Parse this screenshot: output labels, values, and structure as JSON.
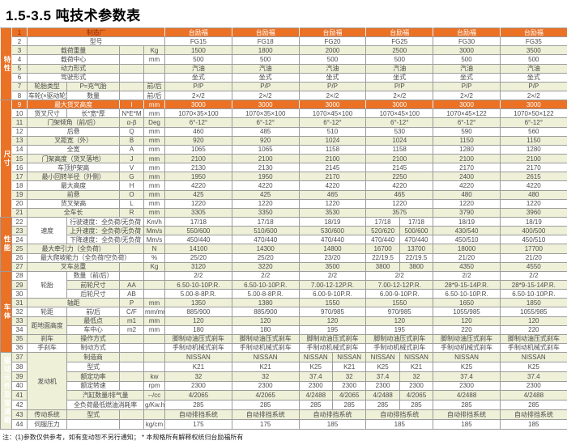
{
  "title": "1.5-3.5 吨技术参数表",
  "footnote": "注：(1)参数仅供参考，如有变动恕不另行通知；  * 本规格所有解释权统归台励福所有",
  "colors": {
    "accent_orange": "#EB7125",
    "band_green": "#EEF0D8",
    "header_text_red": "#8C2A06",
    "grid_gray": "#9C9C9C"
  },
  "table": {
    "models": [
      "FG15",
      "FG18",
      "FG20",
      "FG25",
      "FG30",
      "FG35"
    ],
    "groups": [
      "特性",
      "尺寸",
      "性能",
      "车体",
      "驱动元件及变速箱"
    ],
    "rows": [
      {
        "no": "1",
        "g": {
          "label": "特性",
          "span": 8
        },
        "full": "制造厂",
        "vals": [
          "台励福",
          "台励福",
          "台励福",
          "台励福",
          "台励福",
          "台励福"
        ],
        "hl": true,
        "dark": true
      },
      {
        "no": "2",
        "full": "型号",
        "vals": [
          "FG15",
          "FG18",
          "FG20",
          "FG25",
          "FG30",
          "FG35"
        ]
      },
      {
        "no": "3",
        "label": "载荷重量",
        "sym": "",
        "unit": "Kg",
        "vals": [
          "1500",
          "1800",
          "2000",
          "2500",
          "3000",
          "3500"
        ]
      },
      {
        "no": "4",
        "label": "载荷中心",
        "sym": "",
        "unit": "mm",
        "vals": [
          "500",
          "500",
          "500",
          "500",
          "500",
          "500"
        ]
      },
      {
        "no": "5",
        "label": "动力形式",
        "sym": "",
        "unit": "",
        "vals": [
          "汽油",
          "汽油",
          "汽油",
          "汽油",
          "汽油",
          "汽油"
        ]
      },
      {
        "no": "6",
        "label": "驾驶形式",
        "sym": "",
        "unit": "",
        "vals": [
          "坐式",
          "坐式",
          "坐式",
          "坐式",
          "坐式",
          "坐式"
        ]
      },
      {
        "no": "7",
        "n1": "轮胎类型",
        "n2": "P=充气胎",
        "sym": "",
        "unit": "前/后",
        "vals": [
          "P/P",
          "P/P",
          "P/P",
          "P/P",
          "P/P",
          "P/P"
        ]
      },
      {
        "no": "8",
        "n1": "车轮(×驱动轮)",
        "n2": "数量",
        "sym": "",
        "unit": "前/后",
        "vals": [
          "2×/2",
          "2×/2",
          "2×/2",
          "2×/2",
          "2×/2",
          "2×/2"
        ]
      },
      {
        "no": "9",
        "g": {
          "label": "尺寸",
          "span": 13
        },
        "label": "最大货叉高度",
        "sym": "l",
        "unit": "mm",
        "vals": [
          "3000",
          "3000",
          "3000",
          "3000",
          "3000",
          "3000"
        ],
        "hl": true
      },
      {
        "no": "10",
        "n1": "货叉尺寸",
        "n2": "长*宽*厚",
        "sym": "N*E*M",
        "unit": "mm",
        "vals": [
          "1070×35×100",
          "1070×35×100",
          "1070×45×100",
          "1070×45×100",
          "1070×45×122",
          "1070×50×122"
        ]
      },
      {
        "no": "11",
        "label": "门架倾角（前/后）",
        "sym": "α-β",
        "unit": "Deg",
        "vals": [
          "6°-12°",
          "6°-12°",
          "6°-12°",
          "6°-12°",
          "6°-12°",
          "6°-12°"
        ]
      },
      {
        "no": "12",
        "label": "后悬",
        "sym": "Q",
        "unit": "mm",
        "vals": [
          "460",
          "485",
          "510",
          "530",
          "590",
          "560"
        ]
      },
      {
        "no": "13",
        "label": "叉距宽（外）",
        "sym": "B",
        "unit": "mm",
        "vals": [
          "920",
          "920",
          "1024",
          "1024",
          "1150",
          "1150"
        ]
      },
      {
        "no": "14",
        "label": "全宽",
        "sym": "A",
        "unit": "mm",
        "vals": [
          "1065",
          "1065",
          "1158",
          "1158",
          "1280",
          "1280"
        ]
      },
      {
        "no": "15",
        "label": "门架高度（货叉落地）",
        "sym": "J",
        "unit": "mm",
        "vals": [
          "2100",
          "2100",
          "2100",
          "2100",
          "2100",
          "2100"
        ]
      },
      {
        "no": "16",
        "label": "车顶护架高",
        "sym": "V",
        "unit": "mm",
        "vals": [
          "2130",
          "2130",
          "2145",
          "2145",
          "2170",
          "2170"
        ]
      },
      {
        "no": "17",
        "label": "最小回转半径（外侧）",
        "sym": "G",
        "unit": "mm",
        "vals": [
          "1950",
          "1950",
          "2170",
          "2250",
          "2400",
          "2615"
        ]
      },
      {
        "no": "18",
        "label": "最大高度",
        "sym": "H",
        "unit": "mm",
        "vals": [
          "4220",
          "4220",
          "4220",
          "4220",
          "4220",
          "4220"
        ]
      },
      {
        "no": "19",
        "label": "前悬",
        "sym": "O",
        "unit": "mm",
        "vals": [
          "425",
          "425",
          "465",
          "465",
          "480",
          "480"
        ]
      },
      {
        "no": "20",
        "label": "货叉架高",
        "sym": "L",
        "unit": "mm",
        "vals": [
          "1220",
          "1220",
          "1220",
          "1220",
          "1220",
          "1220"
        ]
      },
      {
        "no": "21",
        "label": "全车长",
        "sym": "R",
        "unit": "mm",
        "vals": [
          "3305",
          "3350",
          "3530",
          "3575",
          "3790",
          "3960"
        ]
      },
      {
        "no": "22",
        "g": {
          "label": "性能",
          "span": 6
        },
        "n1": "速度",
        "n1span": 3,
        "n2": "行驶速度：全负荷/无负荷",
        "n2w": true,
        "unit": "Km/h",
        "vals": [
          "17/18",
          "17/18",
          "18/19",
          [
            "17/18",
            "17/18"
          ],
          "18/19",
          "18/19"
        ]
      },
      {
        "no": "23",
        "n1": null,
        "n2": "上升速度：全负荷/无负荷",
        "n2w": true,
        "unit": "Mm/s",
        "vals": [
          "550/600",
          "510/600",
          "530/600",
          [
            "520/620",
            "500/600"
          ],
          "430/540",
          "400/500"
        ]
      },
      {
        "no": "24",
        "n1": null,
        "n2": "下降速度：全负荷/无负荷",
        "n2w": true,
        "unit": "Mm/s",
        "vals": [
          "450/440",
          "470/440",
          "470/440",
          [
            "470/440",
            "470/440"
          ],
          "450/510",
          "450/510"
        ]
      },
      {
        "no": "25",
        "label": "最大牵引力（全负荷）",
        "sym": "",
        "unit": "N",
        "vals": [
          "14100",
          "14300",
          "14800",
          [
            "16700",
            "13700"
          ],
          "18000",
          "17700"
        ]
      },
      {
        "no": "26",
        "labelw": "最大爬坡能力（全负荷/空负荷）",
        "unit": "%",
        "vals": [
          "25/20",
          "25/20",
          "23/20",
          [
            "22/19.5",
            "22/19.5"
          ],
          "21/20",
          "21/20"
        ]
      },
      {
        "no": "27",
        "label": "叉车总重",
        "sym": "",
        "unit": "Kg",
        "vals": [
          "3120",
          "3220",
          "3500",
          [
            "3800",
            "3800"
          ],
          "4350",
          "4550"
        ]
      },
      {
        "no": "28",
        "g": {
          "label": "车体",
          "span": 9
        },
        "n1": "轮胎",
        "n1span": 3,
        "n2": "数量（前/后）",
        "sym": "",
        "unit": "",
        "vals": [
          "2/2",
          "2/2",
          "2/2",
          "2/2",
          "2/2",
          "2/2"
        ]
      },
      {
        "no": "29",
        "n1": null,
        "n2": "前轮尺寸",
        "sym": "AA",
        "unit": "",
        "vals": [
          "6.50-10-10P.R.",
          "6.50-10-10P.R.",
          "7.00-12-12P.R.",
          "7.00-12-12P.R.",
          "28*9-15-14P.R.",
          "28*9-15-14P.R."
        ]
      },
      {
        "no": "30",
        "n1": null,
        "n2": "后轮尺寸",
        "sym": "AB",
        "unit": "",
        "vals": [
          "5.00-8-8P.R.",
          "5.00-8-8P.R.",
          "6.00-9-10P.R.",
          "6.00-9-10P.R.",
          "6.50-10-10P.R.",
          "6.50-10-10P.R."
        ]
      },
      {
        "no": "31",
        "label": "轴距",
        "sym": "P",
        "unit": "mm",
        "vals": [
          "1350",
          "1380",
          "1550",
          "1550",
          "1650",
          "1850"
        ]
      },
      {
        "no": "32",
        "n1": "轮距",
        "n2": "前/后",
        "sym": "C/F",
        "unit": "mm/mm",
        "vals": [
          "885/900",
          "885/900",
          "970/985",
          "970/985",
          "1055/985",
          "1055/985"
        ]
      },
      {
        "no": "33",
        "n1": "距地面高度",
        "n1span": 2,
        "n2": "最低点",
        "sym": "m1",
        "unit": "mm",
        "vals": [
          "120",
          "120",
          "120",
          "120",
          "120",
          "120"
        ]
      },
      {
        "no": "34",
        "n1": null,
        "n2": "车中心",
        "sym": "m2",
        "unit": "mm",
        "vals": [
          "180",
          "180",
          "195",
          "195",
          "220",
          "220"
        ]
      },
      {
        "no": "35",
        "n1": "刹车",
        "n2": "操作方式",
        "sym": "",
        "unit": "",
        "vals": [
          "脚制动油压式刹车",
          "脚制动油压式刹车",
          "脚制动油压式刹车",
          "脚制动油压式刹车",
          "脚制动油压式刹车",
          "脚制动油压式刹车"
        ]
      },
      {
        "no": "36",
        "n1": "手刹车",
        "n2": "制动方式",
        "sym": "",
        "unit": "",
        "vals": [
          "手制动机械式刹车",
          "手制动机械式刹车",
          "手制动机械式刹车",
          "手制动机械式刹车",
          "手制动机械式刹车",
          "手制动机械式刹车"
        ]
      },
      {
        "no": "37",
        "g": {
          "label": "驱动元件及变速箱",
          "span": 8
        },
        "n1": "发动机",
        "n1span": 6,
        "n2": "制造商",
        "sym": "",
        "unit": "",
        "vals": [
          "NISSAN",
          "NISSAN",
          [
            "NISSAN",
            "NISSAN"
          ],
          [
            "NISSAN",
            "NISSAN"
          ],
          "NISSAN",
          "NISSAN"
        ]
      },
      {
        "no": "38",
        "n1": null,
        "n2": "型式",
        "sym": "",
        "unit": "",
        "vals": [
          "K21",
          "K21",
          [
            "K25",
            "K21"
          ],
          [
            "K25",
            "K21"
          ],
          "K25",
          "K25"
        ]
      },
      {
        "no": "39",
        "n1": null,
        "n2": "额定功率",
        "sym": "",
        "unit": "kw",
        "vals": [
          "32",
          "32",
          [
            "37.4",
            "32"
          ],
          [
            "37.4",
            "32"
          ],
          "37.4",
          "37.4"
        ]
      },
      {
        "no": "40",
        "n1": null,
        "n2": "额定转速",
        "sym": "",
        "unit": "rpm",
        "vals": [
          "2300",
          "2300",
          [
            "2300",
            "2300"
          ],
          [
            "2300",
            "2300"
          ],
          "2300",
          "2300"
        ]
      },
      {
        "no": "41",
        "n1": null,
        "n2": "汽缸数量/排气量",
        "n2w": true,
        "unit": "--/cc",
        "vals": [
          "4/2065",
          "4/2065",
          [
            "4/2488",
            "4/2065"
          ],
          [
            "4/2488",
            "4/2065"
          ],
          "4/2488",
          "4/2488"
        ]
      },
      {
        "no": "42",
        "n1": null,
        "n2": "全负荷最低燃油消耗率",
        "n2w": true,
        "unit": "g/Kw.h",
        "vals": [
          "285",
          "285",
          [
            "285",
            "285"
          ],
          [
            "285",
            "285"
          ],
          "285",
          "285"
        ]
      },
      {
        "no": "43",
        "n1": "传动系统",
        "n2": "型式",
        "sym": "",
        "unit": "",
        "vals": [
          "自动排挡系统",
          "自动排挡系统",
          "自动排挡系统",
          "自动排挡系统",
          "自动排挡系统",
          "自动排挡系统"
        ]
      },
      {
        "no": "44",
        "n1": "伺服压力",
        "n2": "",
        "sym": "",
        "unit": "kg/cm",
        "vals": [
          "175",
          "175",
          "185",
          "185",
          "185",
          "185"
        ]
      }
    ]
  }
}
